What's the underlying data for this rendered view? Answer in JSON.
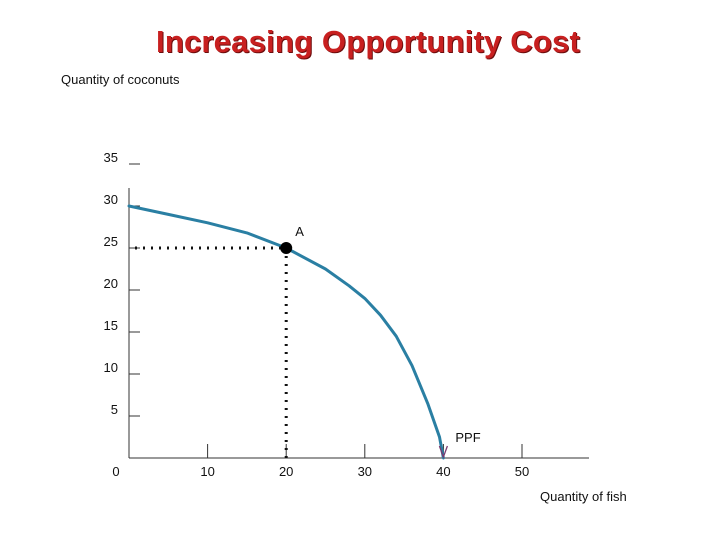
{
  "chart_data": {
    "type": "line",
    "title": "Increasing Opportunity Cost",
    "ylabel": "Quantity of coconuts",
    "xlabel": "Quantity of fish",
    "xlim": [
      0,
      50
    ],
    "ylim": [
      0,
      35
    ],
    "x_ticks": [
      "0",
      "10",
      "20",
      "30",
      "40",
      "50"
    ],
    "y_ticks": [
      "5",
      "10",
      "15",
      "20",
      "25",
      "30",
      "35"
    ],
    "grid": false,
    "series": [
      {
        "name": "PPF",
        "color": "#2a7fa3",
        "x": [
          0,
          5,
          10,
          15,
          20,
          25,
          28,
          30,
          32,
          34,
          36,
          38,
          39.5,
          40
        ],
        "y": [
          30,
          29,
          28,
          26.8,
          25,
          22.5,
          20.5,
          19,
          17,
          14.5,
          11,
          6.5,
          2.5,
          0
        ]
      }
    ],
    "highlight_point": {
      "label": "A",
      "x": 20,
      "y": 25,
      "guides": "dotted"
    }
  }
}
